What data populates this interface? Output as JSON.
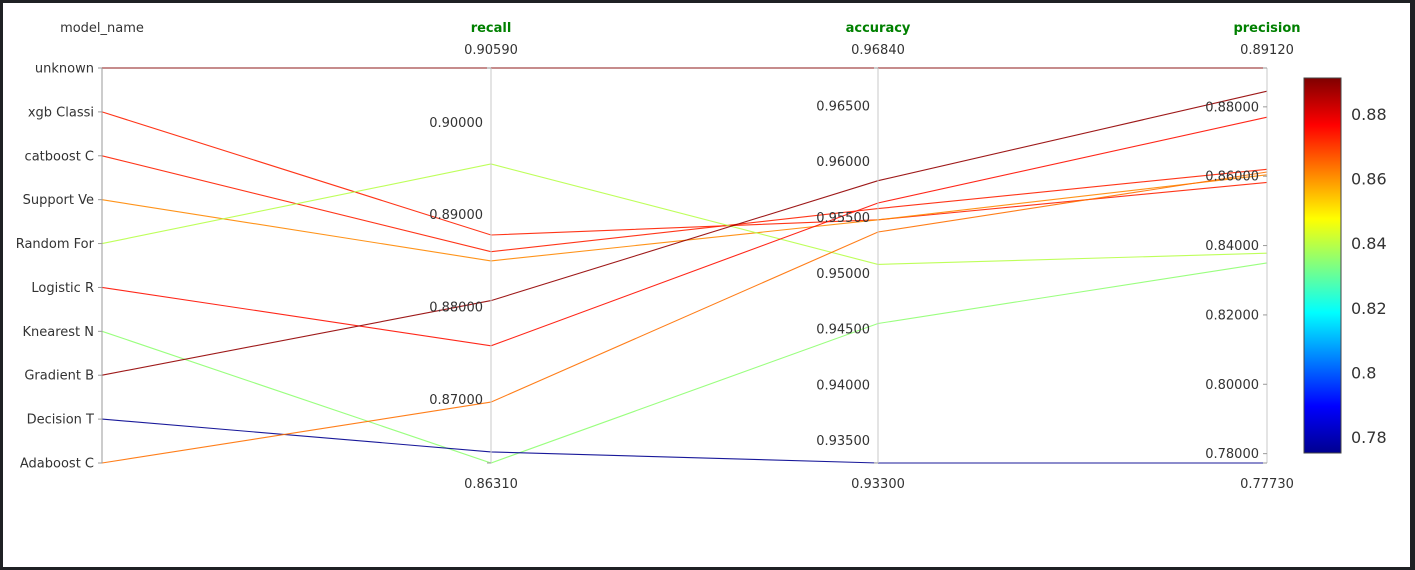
{
  "chart_data": {
    "type": "parallel_coordinates",
    "category_dimension": {
      "label": "model_name",
      "categories": [
        "unknown",
        "xgb Classi",
        "catboost C",
        "Support Ve",
        "Random For",
        "Logistic R",
        "Knearest N",
        "Gradient B",
        "Decision T",
        "Adaboost C"
      ]
    },
    "dimensions": [
      {
        "key": "recall",
        "label": "recall",
        "range": [
          0.8631,
          0.9059
        ],
        "range_labels": [
          "0.86310",
          "0.90590"
        ],
        "ticks": [
          0.87,
          0.88,
          0.89,
          0.9
        ],
        "tick_labels": [
          "0.87000",
          "0.88000",
          "0.89000",
          "0.90000"
        ]
      },
      {
        "key": "accuracy",
        "label": "accuracy",
        "range": [
          0.933,
          0.9684
        ],
        "range_labels": [
          "0.93300",
          "0.96840"
        ],
        "ticks": [
          0.935,
          0.94,
          0.945,
          0.95,
          0.955,
          0.96,
          0.965
        ],
        "tick_labels": [
          "0.93500",
          "0.94000",
          "0.94500",
          "0.95000",
          "0.95500",
          "0.96000",
          "0.96500"
        ]
      },
      {
        "key": "precision",
        "label": "precision",
        "range": [
          0.7773,
          0.8912
        ],
        "range_labels": [
          "0.77730",
          "0.89120"
        ],
        "ticks": [
          0.78,
          0.8,
          0.82,
          0.84,
          0.86,
          0.88
        ],
        "tick_labels": [
          "0.78000",
          "0.80000",
          "0.82000",
          "0.84000",
          "0.86000",
          "0.88000"
        ]
      }
    ],
    "lines": [
      {
        "model": "unknown",
        "recall": 0.9059,
        "accuracy": 0.9684,
        "precision": 0.8912,
        "f1": 0.8985
      },
      {
        "model": "xgb Classi",
        "recall": 0.8878,
        "accuracy": 0.9548,
        "precision": 0.8582,
        "f1": 0.873
      },
      {
        "model": "catboost C",
        "recall": 0.886,
        "accuracy": 0.9558,
        "precision": 0.862,
        "f1": 0.8731
      },
      {
        "model": "Support Ve",
        "recall": 0.885,
        "accuracy": 0.9548,
        "precision": 0.8604,
        "f1": 0.8613
      },
      {
        "model": "Random For",
        "recall": 0.8955,
        "accuracy": 0.9508,
        "precision": 0.8378,
        "f1": 0.8394
      },
      {
        "model": "Logistic R",
        "recall": 0.8758,
        "accuracy": 0.9563,
        "precision": 0.877,
        "f1": 0.875
      },
      {
        "model": "Knearest N",
        "recall": 0.8631,
        "accuracy": 0.9455,
        "precision": 0.835,
        "f1": 0.8348
      },
      {
        "model": "Gradient B",
        "recall": 0.8807,
        "accuracy": 0.9583,
        "precision": 0.8845,
        "f1": 0.889
      },
      {
        "model": "Decision T",
        "recall": 0.8643,
        "accuracy": 0.933,
        "precision": 0.7773,
        "f1": 0.775
      },
      {
        "model": "Adaboost C",
        "recall": 0.8697,
        "accuracy": 0.9537,
        "precision": 0.8612,
        "f1": 0.864
      }
    ],
    "colorbar": {
      "range": [
        0.775,
        0.8912
      ],
      "ticks": [
        0.78,
        0.8,
        0.82,
        0.84,
        0.86,
        0.88
      ],
      "tick_labels": [
        "0.78",
        "0.8",
        "0.82",
        "0.84",
        "0.86",
        "0.88"
      ],
      "colorscale": [
        "#00008f",
        "#0000ff",
        "#0080ff",
        "#00ffff",
        "#80ff80",
        "#ffff00",
        "#ff8000",
        "#ff0000",
        "#800000"
      ]
    }
  }
}
